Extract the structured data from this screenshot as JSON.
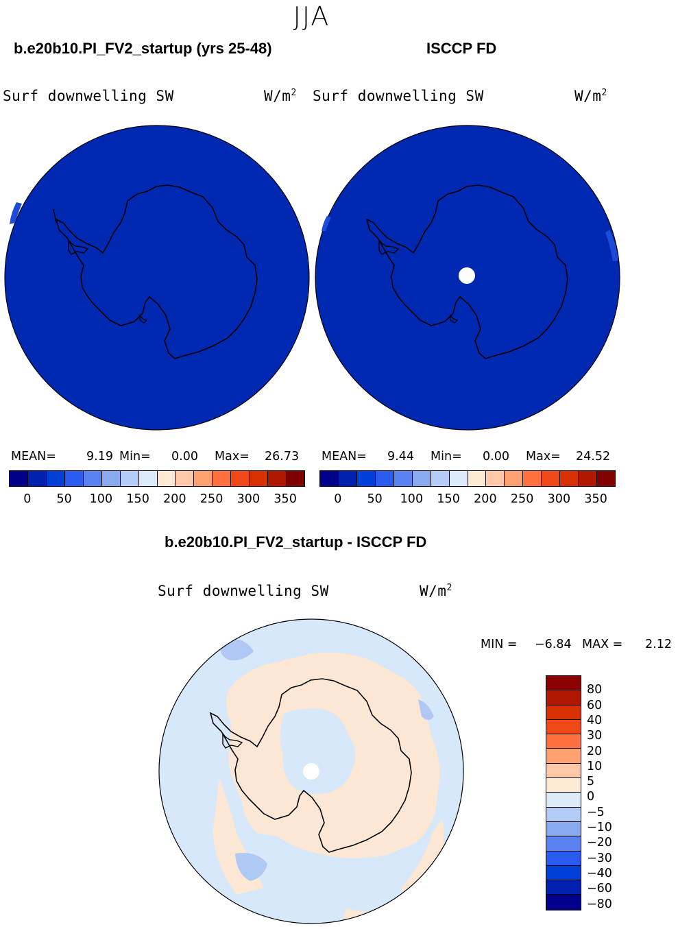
{
  "season": "JJA",
  "panels": [
    {
      "title": "b.e20b10.PI_FV2_startup (yrs 25-48)",
      "field": "Surf downwelling SW",
      "units_base": "W/m",
      "units_exp": "2",
      "mean_label": "MEAN=",
      "mean": "9.19",
      "min_label": "Min=",
      "min": "0.00",
      "max_label": "Max=",
      "max": "26.73"
    },
    {
      "title": "ISCCP FD",
      "field": "Surf downwelling SW",
      "units_base": "W/m",
      "units_exp": "2",
      "mean_label": "MEAN=",
      "mean": "9.44",
      "min_label": "Min=",
      "min": "0.00",
      "max_label": "Max=",
      "max": "24.52"
    }
  ],
  "abs_colorbar": {
    "colors": [
      "#00008B",
      "#0020B0",
      "#0040D8",
      "#2A5CF0",
      "#5A82F0",
      "#8AAAF0",
      "#B4CCF8",
      "#DCEAFA",
      "#FFE8D4",
      "#FFC8A8",
      "#FFA070",
      "#FF7040",
      "#F04818",
      "#D83000",
      "#B01800",
      "#800000"
    ],
    "ticks": [
      "0",
      "50",
      "100",
      "150",
      "200",
      "250",
      "300",
      "350"
    ]
  },
  "diff_panel": {
    "title": "b.e20b10.PI_FV2_startup - ISCCP FD",
    "field": "Surf downwelling SW",
    "units_base": "W/m",
    "units_exp": "2",
    "min_label": "MIN =",
    "min": "−6.84",
    "max_label": "MAX =",
    "max": "2.12"
  },
  "diff_colorbar": {
    "colors_top_to_bottom": [
      "#8B0000",
      "#B01800",
      "#D83000",
      "#F04818",
      "#FF7040",
      "#FFA070",
      "#FFC8A8",
      "#FFE8D4",
      "#DCEAFA",
      "#B4CCF8",
      "#8AAAF0",
      "#5A82F0",
      "#2A5CF0",
      "#0040D8",
      "#0020B0",
      "#00008B"
    ],
    "labels_top_to_bottom": [
      "80",
      "60",
      "40",
      "30",
      "20",
      "10",
      "5",
      "0",
      "−5",
      "−10",
      "−20",
      "−30",
      "−40",
      "−60",
      "−80"
    ]
  },
  "map_colors": {
    "abs_fill": "#0028B0",
    "abs_edge": "#1E4AD8",
    "diff_neg": "#D6E8FA",
    "diff_pos": "#FCE6D4",
    "diff_neg2": "#B0C8F4",
    "missing": "#FFFFFF",
    "coast": "#000000"
  },
  "chart_data": {
    "type": "heatmap",
    "projection": "south-polar-stereographic",
    "season": "JJA",
    "variable": "Surf downwelling SW",
    "units": "W/m2",
    "panels": [
      {
        "name": "b.e20b10.PI_FV2_startup (yrs 25-48)",
        "mean": 9.19,
        "min": 0.0,
        "max": 26.73,
        "levels": [
          0,
          25,
          50,
          75,
          100,
          125,
          150,
          175,
          200,
          225,
          250,
          275,
          300,
          325,
          350
        ]
      },
      {
        "name": "ISCCP FD",
        "mean": 9.44,
        "min": 0.0,
        "max": 24.52,
        "levels": [
          0,
          25,
          50,
          75,
          100,
          125,
          150,
          175,
          200,
          225,
          250,
          275,
          300,
          325,
          350
        ]
      },
      {
        "name": "b.e20b10.PI_FV2_startup - ISCCP FD",
        "min": -6.84,
        "max": 2.12,
        "levels": [
          -80,
          -60,
          -40,
          -30,
          -20,
          -10,
          -5,
          0,
          5,
          10,
          20,
          30,
          40,
          60,
          80
        ]
      }
    ]
  }
}
